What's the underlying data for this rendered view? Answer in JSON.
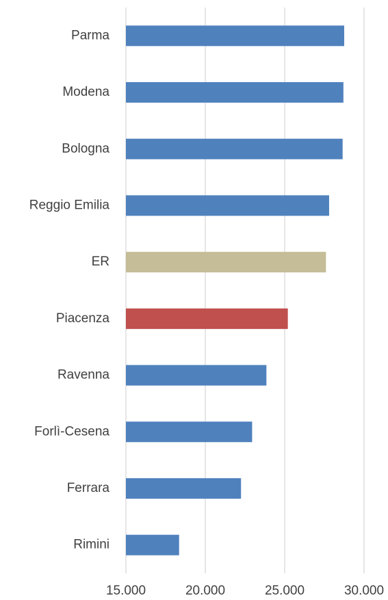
{
  "chart_data": {
    "type": "barh",
    "categories": [
      "Parma",
      "Modena",
      "Bologna",
      "Reggio Emilia",
      "ER",
      "Piacenza",
      "Ravenna",
      "Forlì-Cesena",
      "Ferrara",
      "Rimini"
    ],
    "values": [
      28750,
      28700,
      28650,
      27800,
      27600,
      25200,
      23850,
      22950,
      22250,
      18350
    ],
    "colors": [
      "#4f81bd",
      "#4f81bd",
      "#4f81bd",
      "#4f81bd",
      "#c4bd97",
      "#c0504d",
      "#4f81bd",
      "#4f81bd",
      "#4f81bd",
      "#4f81bd"
    ],
    "xlim": [
      15000,
      30000
    ],
    "xticks": [
      {
        "value": 15000,
        "label": "15.000"
      },
      {
        "value": 20000,
        "label": "20.000"
      },
      {
        "value": 25000,
        "label": "25.000"
      },
      {
        "value": 30000,
        "label": "30.000"
      }
    ],
    "grid": true
  }
}
